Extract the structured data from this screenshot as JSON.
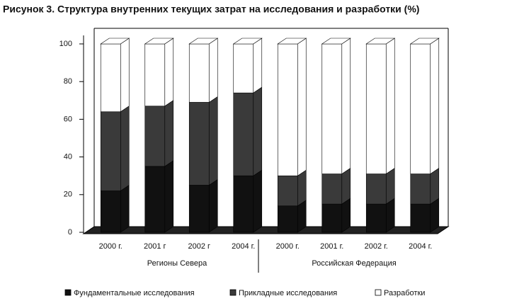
{
  "chart_data": {
    "type": "stacked_bar",
    "title": "Рисунок 3. Структура внутренних текущих затрат на исследования и разработки (%)",
    "categories": [
      "2000 г.",
      "2001 г",
      "2002 г",
      "2004 г.",
      "2000 г.",
      "2001 г.",
      "2002 г.",
      "2004 г."
    ],
    "groups": [
      {
        "label": "Регионы Севера",
        "size": 4
      },
      {
        "label": "Российская Федерация",
        "size": 4
      }
    ],
    "series": [
      {
        "name": "Фундаментальные исследования",
        "color": "#111111",
        "values": [
          22,
          35,
          25,
          30,
          14,
          15,
          15,
          15
        ]
      },
      {
        "name": "Прикладные исследования",
        "color": "#3a3a3a",
        "values": [
          42,
          32,
          44,
          44,
          16,
          16,
          16,
          16
        ]
      },
      {
        "name": "Разработки",
        "color": "#ffffff",
        "values": [
          36,
          33,
          31,
          26,
          70,
          69,
          69,
          69
        ]
      }
    ],
    "ylim": [
      0,
      100
    ],
    "yticks": [
      0,
      20,
      40,
      60,
      80,
      100
    ],
    "grid": false
  }
}
